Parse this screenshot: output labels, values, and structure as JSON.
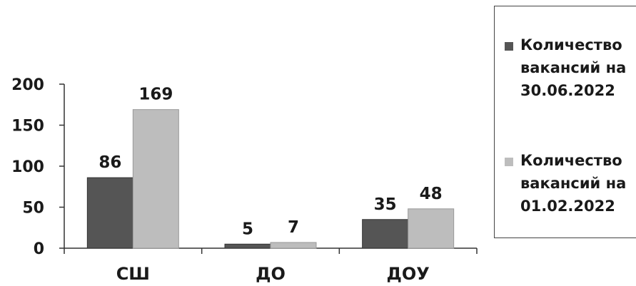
{
  "chart_data": {
    "type": "bar",
    "categories": [
      "СШ",
      "ДО",
      "ДОУ"
    ],
    "series": [
      {
        "name": "Количество\nвакансий на\n30.06.2022",
        "values": [
          86,
          5,
          35
        ],
        "color": "#555555"
      },
      {
        "name": "Количество\nвакансий на\n01.02.2022",
        "values": [
          169,
          7,
          48
        ],
        "color": "#bdbdbd"
      }
    ],
    "yticks": [
      "0",
      "50",
      "100",
      "150",
      "200"
    ],
    "ylim": [
      0,
      200
    ],
    "data_labels": [
      [
        "86",
        "5",
        "35"
      ],
      [
        "169",
        "7",
        "48"
      ]
    ],
    "legend_position": "right",
    "grid": false
  }
}
